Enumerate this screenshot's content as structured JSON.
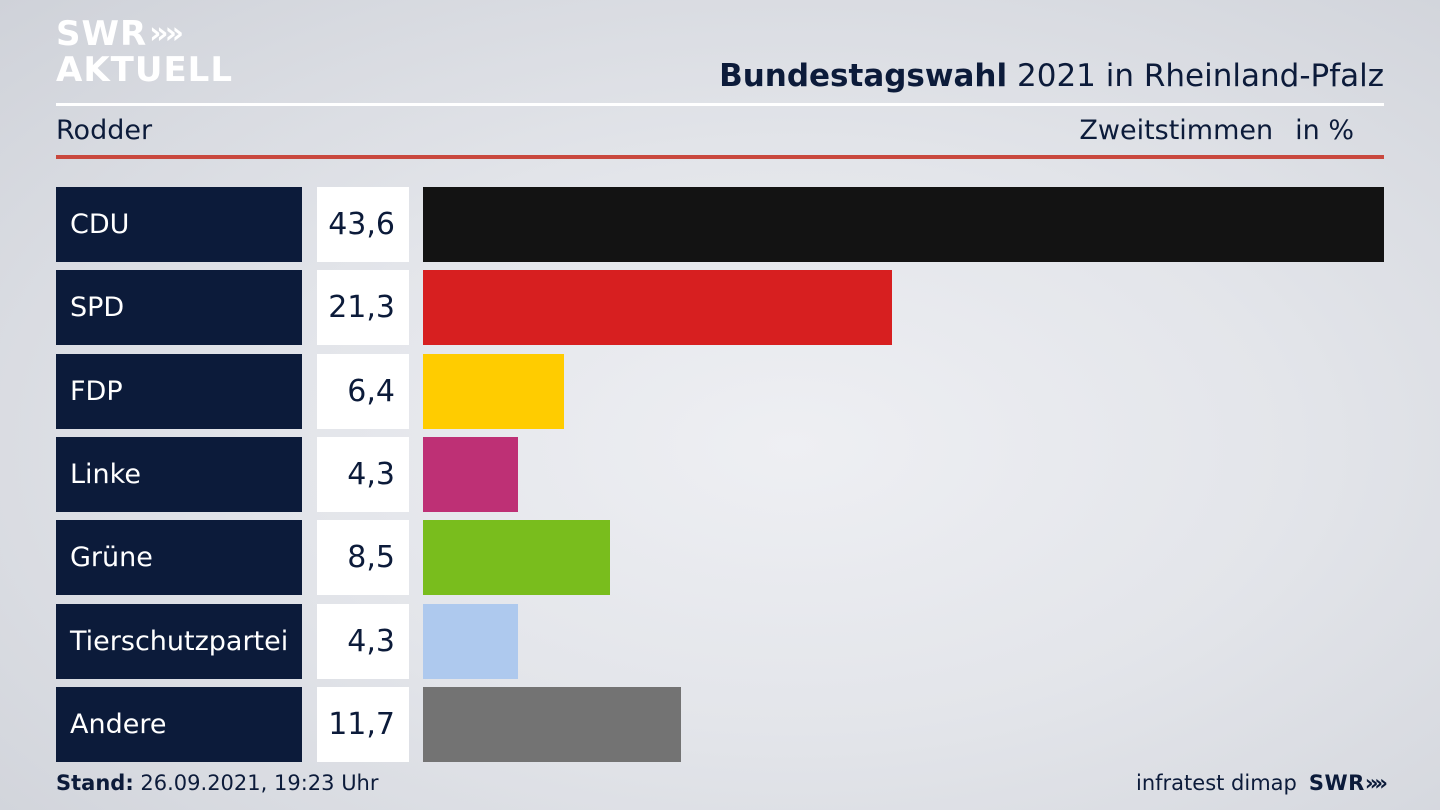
{
  "logo": {
    "line1": "SWR",
    "line2": "AKTUELL",
    "chevrons": "»"
  },
  "header": {
    "title_bold": "Bundestagswahl",
    "title_rest": "2021 in Rheinland-Pfalz",
    "region": "Rodder",
    "metric": "Zweitstimmen",
    "unit": "in %"
  },
  "footer": {
    "stand_label": "Stand:",
    "stand_value": "26.09.2021, 19:23 Uhr",
    "source": "infratest dimap",
    "brand": "SWR",
    "brand_chevrons": "»"
  },
  "chart_data": {
    "type": "bar",
    "orientation": "horizontal",
    "categories": [
      "CDU",
      "SPD",
      "FDP",
      "Linke",
      "Grüne",
      "Tierschutzpartei",
      "Andere"
    ],
    "values": [
      43.6,
      21.3,
      6.4,
      4.3,
      8.5,
      4.3,
      11.7
    ],
    "value_labels": [
      "43,6",
      "21,3",
      "6,4",
      "4,3",
      "8,5",
      "4,3",
      "11,7"
    ],
    "colors": [
      "#131313",
      "#d71f20",
      "#ffcc00",
      "#be3075",
      "#79bd1d",
      "#aec9ee",
      "#737373"
    ],
    "title": "Bundestagswahl 2021 in Rheinland-Pfalz",
    "unit": "in %"
  }
}
